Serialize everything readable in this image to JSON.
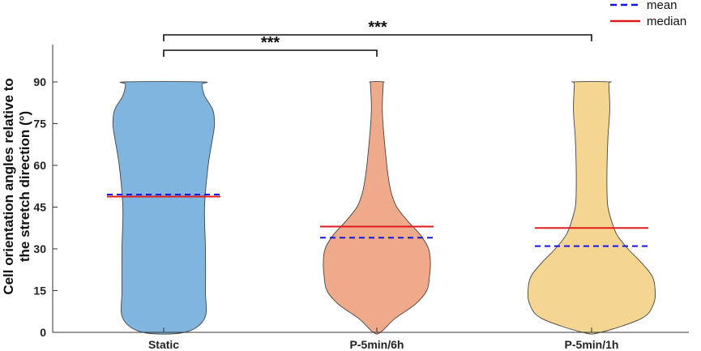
{
  "chart_data": {
    "type": "violin",
    "ylabel_line1": "Cell orientation angles relative to",
    "ylabel_line2": "the stretch direction (°)",
    "ylim": [
      0,
      90
    ],
    "yticks": [
      "0",
      "15",
      "30",
      "45",
      "60",
      "75",
      "90"
    ],
    "categories": [
      "Static",
      "P-5min/6h",
      "P-5min/1h"
    ],
    "colors": [
      "#7fb5df",
      "#eeaa8b",
      "#f4d692"
    ],
    "means": [
      49.5,
      34,
      31
    ],
    "medians": [
      48.8,
      38,
      37.5
    ],
    "densities": [
      [
        [
          0,
          0.23
        ],
        [
          5,
          0.45
        ],
        [
          15,
          0.46
        ],
        [
          30,
          0.46
        ],
        [
          45,
          0.45
        ],
        [
          60,
          0.49
        ],
        [
          70,
          0.54
        ],
        [
          75,
          0.56
        ],
        [
          80,
          0.54
        ],
        [
          85,
          0.45
        ],
        [
          89,
          0.42
        ],
        [
          90,
          0.42
        ]
      ],
      [
        [
          0,
          0.04
        ],
        [
          5,
          0.2
        ],
        [
          10,
          0.42
        ],
        [
          15,
          0.55
        ],
        [
          20,
          0.58
        ],
        [
          25,
          0.59
        ],
        [
          30,
          0.57
        ],
        [
          35,
          0.48
        ],
        [
          40,
          0.34
        ],
        [
          45,
          0.22
        ],
        [
          50,
          0.16
        ],
        [
          55,
          0.13
        ],
        [
          60,
          0.11
        ],
        [
          70,
          0.08
        ],
        [
          80,
          0.06
        ],
        [
          89,
          0.07
        ],
        [
          90,
          0.07
        ]
      ],
      [
        [
          0,
          0.1
        ],
        [
          5,
          0.55
        ],
        [
          10,
          0.68
        ],
        [
          15,
          0.7
        ],
        [
          20,
          0.67
        ],
        [
          25,
          0.55
        ],
        [
          30,
          0.4
        ],
        [
          35,
          0.28
        ],
        [
          40,
          0.22
        ],
        [
          45,
          0.18
        ],
        [
          50,
          0.17
        ],
        [
          60,
          0.17
        ],
        [
          70,
          0.18
        ],
        [
          80,
          0.2
        ],
        [
          89,
          0.19
        ],
        [
          90,
          0.19
        ]
      ]
    ],
    "legend": [
      {
        "label": "mean",
        "color": "#1414e6",
        "style": "dashed"
      },
      {
        "label": "median",
        "color": "#e01b1b",
        "style": "solid"
      }
    ],
    "significance": [
      {
        "from": 0,
        "to": 1,
        "label": "***"
      },
      {
        "from": 0,
        "to": 2,
        "label": "***"
      }
    ]
  }
}
